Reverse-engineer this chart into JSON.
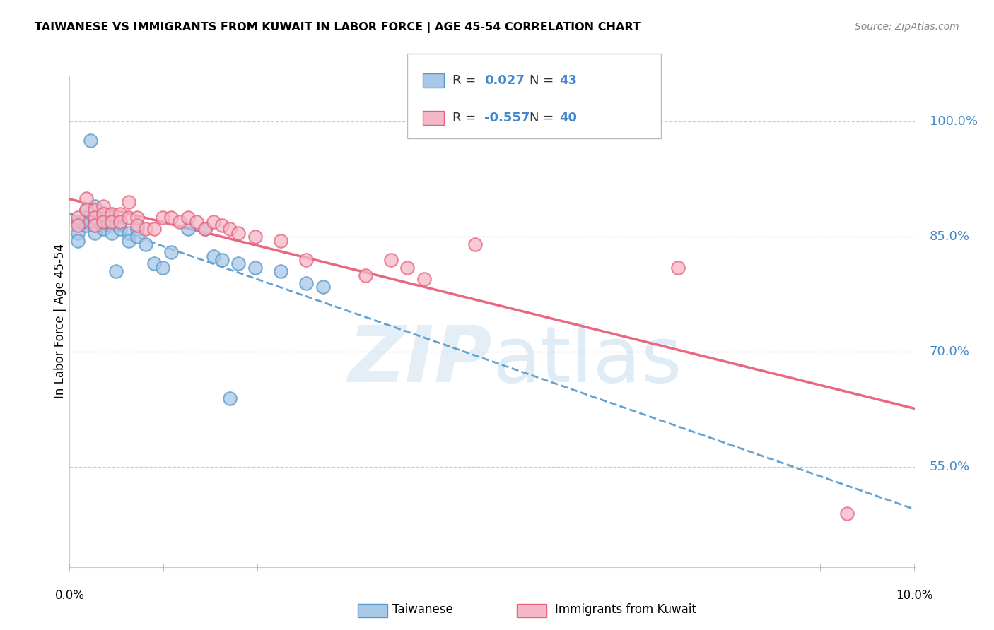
{
  "title": "TAIWANESE VS IMMIGRANTS FROM KUWAIT IN LABOR FORCE | AGE 45-54 CORRELATION CHART",
  "source": "Source: ZipAtlas.com",
  "ylabel": "In Labor Force | Age 45-54",
  "yticks": [
    0.55,
    0.7,
    0.85,
    1.0
  ],
  "ytick_labels": [
    "55.0%",
    "70.0%",
    "85.0%",
    "100.0%"
  ],
  "xlim": [
    0.0,
    0.1
  ],
  "ylim": [
    0.42,
    1.06
  ],
  "taiwanese_color": "#a8c8e8",
  "kuwait_color": "#f4b8c8",
  "blue_line_color": "#5599cc",
  "pink_line_color": "#e8607a",
  "blue_text_color": "#4488cc",
  "grid_color": "#cccccc",
  "axis_label_color": "#4488cc",
  "taiwanese_x": [
    0.001,
    0.001,
    0.001,
    0.002,
    0.002,
    0.002,
    0.002,
    0.003,
    0.003,
    0.003,
    0.003,
    0.004,
    0.004,
    0.004,
    0.004,
    0.005,
    0.005,
    0.005,
    0.005,
    0.006,
    0.006,
    0.007,
    0.007,
    0.008,
    0.008,
    0.009,
    0.01,
    0.011,
    0.012,
    0.014,
    0.016,
    0.017,
    0.018,
    0.02,
    0.022,
    0.025,
    0.028,
    0.03,
    0.0025,
    0.0015,
    0.0035,
    0.0055,
    0.019
  ],
  "taiwanese_y": [
    0.87,
    0.855,
    0.845,
    0.885,
    0.875,
    0.87,
    0.865,
    0.89,
    0.87,
    0.865,
    0.855,
    0.88,
    0.87,
    0.865,
    0.86,
    0.875,
    0.87,
    0.865,
    0.855,
    0.87,
    0.86,
    0.855,
    0.845,
    0.86,
    0.85,
    0.84,
    0.815,
    0.81,
    0.83,
    0.86,
    0.86,
    0.825,
    0.82,
    0.815,
    0.81,
    0.805,
    0.79,
    0.785,
    0.975,
    0.87,
    0.87,
    0.805,
    0.64
  ],
  "kuwait_x": [
    0.001,
    0.001,
    0.002,
    0.002,
    0.003,
    0.003,
    0.003,
    0.004,
    0.004,
    0.004,
    0.005,
    0.005,
    0.006,
    0.006,
    0.007,
    0.007,
    0.008,
    0.008,
    0.009,
    0.01,
    0.011,
    0.012,
    0.013,
    0.014,
    0.015,
    0.016,
    0.017,
    0.018,
    0.019,
    0.02,
    0.022,
    0.025,
    0.028,
    0.035,
    0.038,
    0.04,
    0.042,
    0.048,
    0.072,
    0.092
  ],
  "kuwait_y": [
    0.875,
    0.865,
    0.9,
    0.885,
    0.885,
    0.875,
    0.865,
    0.89,
    0.88,
    0.87,
    0.88,
    0.87,
    0.88,
    0.87,
    0.895,
    0.875,
    0.875,
    0.865,
    0.86,
    0.86,
    0.875,
    0.875,
    0.87,
    0.875,
    0.87,
    0.86,
    0.87,
    0.865,
    0.86,
    0.855,
    0.85,
    0.845,
    0.82,
    0.8,
    0.82,
    0.81,
    0.795,
    0.84,
    0.81,
    0.49
  ]
}
